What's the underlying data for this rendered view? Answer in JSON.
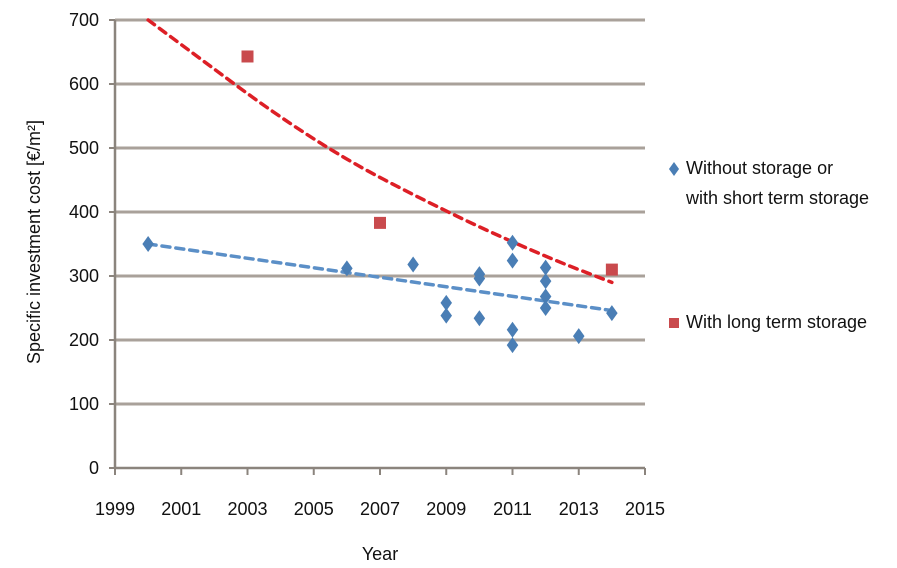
{
  "chart_data": {
    "type": "scatter",
    "title": "",
    "xlabel": "Year",
    "ylabel": "Specific investment cost [€/m²]",
    "xlim": [
      1999,
      2015
    ],
    "ylim": [
      0,
      700
    ],
    "x_ticks": [
      1999,
      2001,
      2003,
      2005,
      2007,
      2009,
      2011,
      2013,
      2015
    ],
    "y_ticks": [
      0,
      100,
      200,
      300,
      400,
      500,
      600,
      700
    ],
    "grid": "horizontal",
    "legend_position": "right",
    "series": [
      {
        "name": "Without storage or with short term storage",
        "legend_lines": [
          "Without storage or",
          "with short term storage"
        ],
        "marker": "diamond",
        "color": "#4a7eb5",
        "points": [
          {
            "x": 2000,
            "y": 350
          },
          {
            "x": 2006,
            "y": 312
          },
          {
            "x": 2008,
            "y": 318
          },
          {
            "x": 2009,
            "y": 258
          },
          {
            "x": 2009,
            "y": 238
          },
          {
            "x": 2010,
            "y": 303
          },
          {
            "x": 2010,
            "y": 296
          },
          {
            "x": 2010,
            "y": 234
          },
          {
            "x": 2011,
            "y": 352
          },
          {
            "x": 2011,
            "y": 324
          },
          {
            "x": 2011,
            "y": 216
          },
          {
            "x": 2011,
            "y": 192
          },
          {
            "x": 2012,
            "y": 313
          },
          {
            "x": 2012,
            "y": 292
          },
          {
            "x": 2012,
            "y": 268
          },
          {
            "x": 2012,
            "y": 250
          },
          {
            "x": 2013,
            "y": 206
          },
          {
            "x": 2014,
            "y": 242
          }
        ]
      },
      {
        "name": "With long term storage",
        "legend_lines": [
          "With long term storage"
        ],
        "marker": "square",
        "color": "#c94a4d",
        "points": [
          {
            "x": 2003,
            "y": 643
          },
          {
            "x": 2007,
            "y": 383
          },
          {
            "x": 2014,
            "y": 310
          }
        ]
      }
    ],
    "trendlines": [
      {
        "series": "Without storage or with short term storage",
        "style": "dashed",
        "color": "#5b8fc7",
        "points": [
          {
            "x": 2000,
            "y": 350
          },
          {
            "x": 2014,
            "y": 246
          }
        ]
      },
      {
        "series": "With long term storage",
        "style": "dashed",
        "color": "#dd1f26",
        "points": [
          {
            "x": 2000,
            "y": 700
          },
          {
            "x": 2005,
            "y": 508
          },
          {
            "x": 2009,
            "y": 400
          },
          {
            "x": 2012,
            "y": 330
          },
          {
            "x": 2014,
            "y": 290
          }
        ]
      }
    ],
    "colors": {
      "grid": "#a9a19a",
      "axis": "#8b847d",
      "text": "#111111"
    }
  }
}
